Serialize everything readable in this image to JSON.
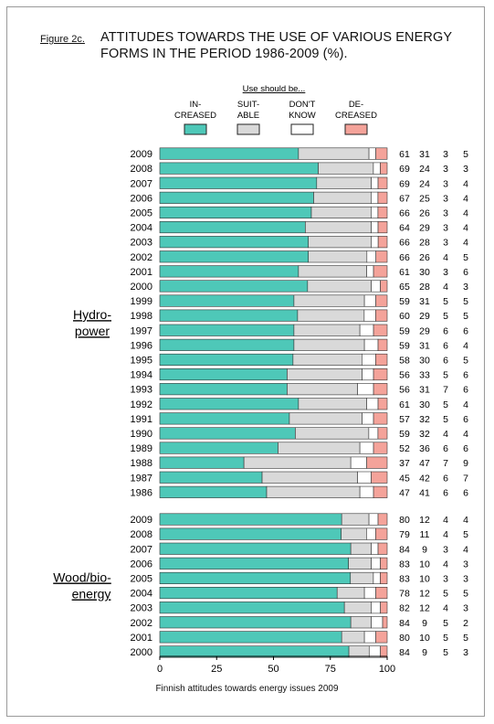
{
  "figure": {
    "label": "Figure 2c.",
    "title_line1": "ATTITUDES TOWARDS THE USE OF VARIOUS ENERGY",
    "title_line2": "FORMS IN THE PERIOD 1986-2009 (%).",
    "footer": "Finnish attitudes towards energy issues 2009"
  },
  "colors": {
    "increased": "#4ec8b8",
    "suitable": "#d9d9d9",
    "dont_know": "#ffffff",
    "decreased": "#f4a39a"
  },
  "chart_data": {
    "type": "bar",
    "orientation": "horizontal",
    "stacked": true,
    "xlim": [
      0,
      100
    ],
    "xticks": [
      "0",
      "25",
      "50",
      "75",
      "100"
    ],
    "legend": {
      "title": "Use should be...",
      "placement": "top",
      "items": [
        {
          "key": "increased",
          "label_top": "IN-",
          "label_bottom": "CREASED"
        },
        {
          "key": "suitable",
          "label_top": "SUIT-",
          "label_bottom": "ABLE"
        },
        {
          "key": "dont_know",
          "label_top": "DON'T",
          "label_bottom": "KNOW"
        },
        {
          "key": "decreased",
          "label_top": "DE-",
          "label_bottom": "CREASED"
        }
      ]
    },
    "groups": [
      {
        "label_line1": "Hydro-",
        "label_line2": "power",
        "rows": [
          {
            "year": "2009",
            "values": [
              61,
              31,
              3,
              5
            ]
          },
          {
            "year": "2008",
            "values": [
              69,
              24,
              3,
              3
            ]
          },
          {
            "year": "2007",
            "values": [
              69,
              24,
              3,
              4
            ]
          },
          {
            "year": "2006",
            "values": [
              67,
              25,
              3,
              4
            ]
          },
          {
            "year": "2005",
            "values": [
              66,
              26,
              3,
              4
            ]
          },
          {
            "year": "2004",
            "values": [
              64,
              29,
              3,
              4
            ]
          },
          {
            "year": "2003",
            "values": [
              66,
              28,
              3,
              4
            ]
          },
          {
            "year": "2002",
            "values": [
              66,
              26,
              4,
              5
            ]
          },
          {
            "year": "2001",
            "values": [
              61,
              30,
              3,
              6
            ]
          },
          {
            "year": "2000",
            "values": [
              65,
              28,
              4,
              3
            ]
          },
          {
            "year": "1999",
            "values": [
              59,
              31,
              5,
              5
            ]
          },
          {
            "year": "1998",
            "values": [
              60,
              29,
              5,
              5
            ]
          },
          {
            "year": "1997",
            "values": [
              59,
              29,
              6,
              6
            ]
          },
          {
            "year": "1996",
            "values": [
              59,
              31,
              6,
              4
            ]
          },
          {
            "year": "1995",
            "values": [
              58,
              30,
              6,
              5
            ]
          },
          {
            "year": "1994",
            "values": [
              56,
              33,
              5,
              6
            ]
          },
          {
            "year": "1993",
            "values": [
              56,
              31,
              7,
              6
            ]
          },
          {
            "year": "1992",
            "values": [
              61,
              30,
              5,
              4
            ]
          },
          {
            "year": "1991",
            "values": [
              57,
              32,
              5,
              6
            ]
          },
          {
            "year": "1990",
            "values": [
              59,
              32,
              4,
              4
            ]
          },
          {
            "year": "1989",
            "values": [
              52,
              36,
              6,
              6
            ]
          },
          {
            "year": "1988",
            "values": [
              37,
              47,
              7,
              9
            ]
          },
          {
            "year": "1987",
            "values": [
              45,
              42,
              6,
              7
            ]
          },
          {
            "year": "1986",
            "values": [
              47,
              41,
              6,
              6
            ]
          }
        ]
      },
      {
        "label_line1": "Wood/bio-",
        "label_line2": "energy",
        "rows": [
          {
            "year": "2009",
            "values": [
              80,
              12,
              4,
              4
            ]
          },
          {
            "year": "2008",
            "values": [
              79,
              11,
              4,
              5
            ]
          },
          {
            "year": "2007",
            "values": [
              84,
              9,
              3,
              4
            ]
          },
          {
            "year": "2006",
            "values": [
              83,
              10,
              4,
              3
            ]
          },
          {
            "year": "2005",
            "values": [
              83,
              10,
              3,
              3
            ]
          },
          {
            "year": "2004",
            "values": [
              78,
              12,
              5,
              5
            ]
          },
          {
            "year": "2003",
            "values": [
              82,
              12,
              4,
              3
            ]
          },
          {
            "year": "2002",
            "values": [
              84,
              9,
              5,
              2
            ]
          },
          {
            "year": "2001",
            "values": [
              80,
              10,
              5,
              5
            ]
          },
          {
            "year": "2000",
            "values": [
              84,
              9,
              5,
              3
            ]
          }
        ]
      }
    ]
  }
}
